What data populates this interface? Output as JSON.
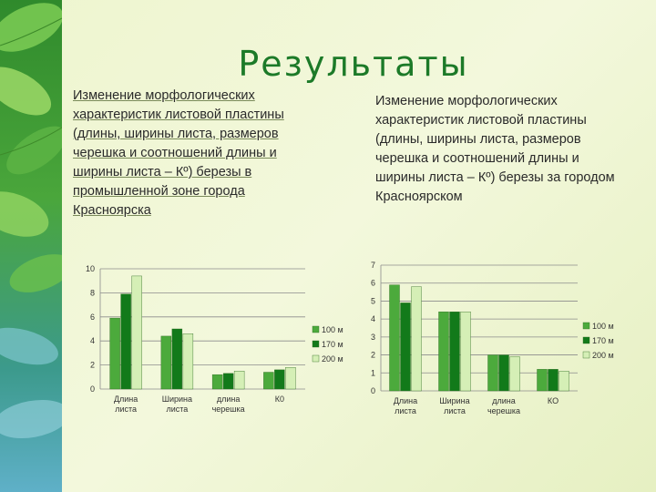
{
  "title": "Результаты",
  "left_text": "Изменение морфологических характеристик листовой пластины (длины, ширины листа, размеров черешка и соотношений длины и ширины листа – Кº) березы в промышленной зоне города Красноярска",
  "right_text": "Изменение морфологических характеристик листовой пластины (длины, ширины листа, размеров черешка и соотношений длины и ширины листа – Кº) березы за городом Красноярском",
  "colors": {
    "s1": "#4caa3c",
    "s2": "#127a1a",
    "s3": "#d5efb6"
  },
  "chart_data": [
    {
      "type": "bar",
      "categories": [
        "Длина листа",
        "Ширина листа",
        "длина черешка",
        "К0"
      ],
      "yticks": [
        "0",
        "2",
        "4",
        "6",
        "8",
        "10"
      ],
      "ylim": [
        0,
        10
      ],
      "grid": true,
      "legend": "right",
      "series": [
        {
          "name": "100 м",
          "values": [
            5.9,
            4.4,
            1.2,
            1.4
          ]
        },
        {
          "name": "170 м",
          "values": [
            7.9,
            5.0,
            1.3,
            1.6
          ]
        },
        {
          "name": "200 м",
          "values": [
            9.4,
            4.6,
            1.5,
            1.8
          ]
        }
      ]
    },
    {
      "type": "bar",
      "categories": [
        "Длина листа",
        "Ширина листа",
        "длина черешка",
        "КО"
      ],
      "yticks": [
        "0",
        "1",
        "2",
        "3",
        "4",
        "5",
        "6",
        "7"
      ],
      "ylim": [
        0,
        7
      ],
      "grid": true,
      "legend": "right",
      "series": [
        {
          "name": "100 м",
          "values": [
            5.9,
            4.4,
            2.0,
            1.2
          ]
        },
        {
          "name": "170 м",
          "values": [
            4.9,
            4.4,
            2.0,
            1.2
          ]
        },
        {
          "name": "200 м",
          "values": [
            5.8,
            4.4,
            1.9,
            1.1
          ]
        }
      ]
    }
  ]
}
